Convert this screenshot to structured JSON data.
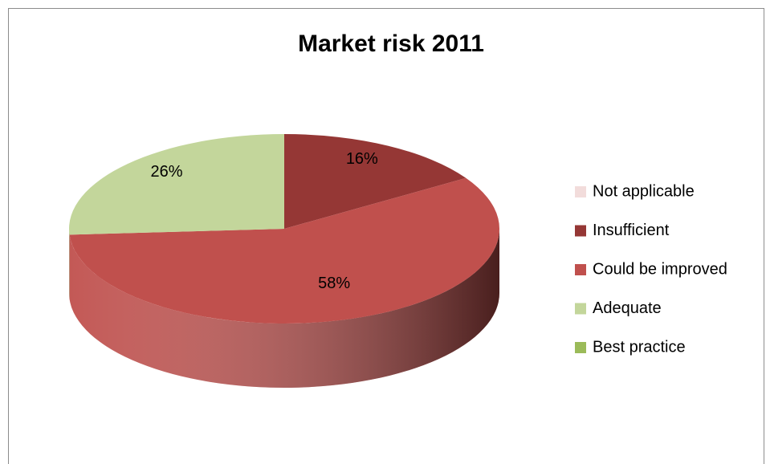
{
  "chart_data": {
    "type": "pie",
    "title": "Market risk 2011",
    "categories": [
      "Not applicable",
      "Insufficient",
      "Could be improved",
      "Adequate",
      "Best practice"
    ],
    "values": [
      0,
      16,
      58,
      26,
      0
    ],
    "value_labels": [
      null,
      "16%",
      "58%",
      "26%",
      null
    ],
    "colors": [
      "#f2dcdb",
      "#953735",
      "#c0504d",
      "#c3d69b",
      "#9bbb59"
    ],
    "legend": "right"
  }
}
